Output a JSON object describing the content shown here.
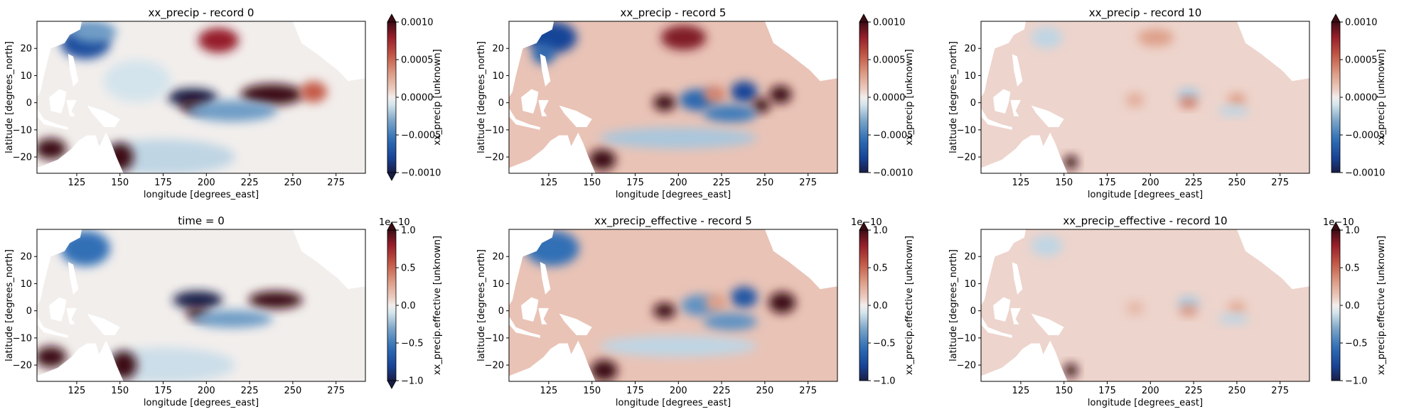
{
  "colors": {
    "background": "#ffffff",
    "land": "#ffffff",
    "ocean_neutral": "#f0e9e7",
    "colormap": "balance (diverging dark-blue - white - dark-red)"
  },
  "chart_data": [
    {
      "type": "heatmap",
      "title": "xx_precip - record 0",
      "xlabel": "longitude [degrees_east]",
      "ylabel": "latitude [degrees_north]",
      "xticks": [
        "125",
        "150",
        "175",
        "200",
        "225",
        "250",
        "275"
      ],
      "yticks": [
        "20",
        "10",
        "0",
        "−10",
        "−20"
      ],
      "xlim": [
        102,
        292
      ],
      "ylim": [
        -26,
        30
      ],
      "colorbar": {
        "label": "xx_precip [unknown]",
        "ticks": [
          "0.0010",
          "0.0005",
          "0.0000",
          "−0.0005",
          "−0.0010"
        ],
        "range": [
          -0.001,
          0.001
        ],
        "multiplier": "",
        "extend_min": true,
        "extend_max": true
      },
      "background_value": 0.0,
      "features": [
        {
          "lon": 130,
          "lat": 22,
          "sx": 11,
          "sy": 4.5,
          "v": -0.75
        },
        {
          "lon": 135,
          "lat": 26,
          "sx": 10,
          "sy": 3,
          "v": -0.35
        },
        {
          "lon": 207,
          "lat": 23,
          "sx": 9,
          "sy": 3.5,
          "v": 0.8
        },
        {
          "lon": 192,
          "lat": 2,
          "sx": 11,
          "sy": 2.5,
          "v": -1.2
        },
        {
          "lon": 193,
          "lat": -1,
          "sx": 6,
          "sy": 2,
          "v": 1.4
        },
        {
          "lon": 238,
          "lat": 3,
          "sx": 14,
          "sy": 3,
          "v": 1.1
        },
        {
          "lon": 262,
          "lat": 4,
          "sx": 6,
          "sy": 3,
          "v": 0.55
        },
        {
          "lon": 215,
          "lat": -3,
          "sx": 20,
          "sy": 3,
          "v": -0.35
        },
        {
          "lon": 175,
          "lat": -20,
          "sx": 32,
          "sy": 5,
          "v": -0.15
        },
        {
          "lon": 110,
          "lat": -17,
          "sx": 7,
          "sy": 3,
          "v": 1.6
        },
        {
          "lon": 150,
          "lat": -20,
          "sx": 6,
          "sy": 4,
          "v": 1.7
        },
        {
          "lon": 160,
          "lat": 8,
          "sx": 15,
          "sy": 6,
          "v": -0.1
        }
      ]
    },
    {
      "type": "heatmap",
      "title": "xx_precip - record 5",
      "xlabel": "longitude [degrees_east]",
      "ylabel": "latitude [degrees_north]",
      "xticks": [
        "125",
        "150",
        "175",
        "200",
        "225",
        "250",
        "275"
      ],
      "yticks": [
        "20",
        "10",
        "0",
        "−10",
        "−20"
      ],
      "xlim": [
        102,
        292
      ],
      "ylim": [
        -26,
        30
      ],
      "colorbar": {
        "label": "xx_precip [unknown]",
        "ticks": [
          "0.0010",
          "0.0005",
          "0.0000",
          "−0.0005",
          "−0.0010"
        ],
        "range": [
          -0.001,
          0.001
        ],
        "multiplier": "",
        "extend_min": false,
        "extend_max": true
      },
      "background_value": 0.15,
      "features": [
        {
          "lon": 127,
          "lat": 24,
          "sx": 11,
          "sy": 4.5,
          "v": -0.8
        },
        {
          "lon": 122,
          "lat": 18,
          "sx": 5,
          "sy": 3,
          "v": -0.6
        },
        {
          "lon": 203,
          "lat": 24,
          "sx": 10,
          "sy": 3.5,
          "v": 0.85
        },
        {
          "lon": 192,
          "lat": 0,
          "sx": 5,
          "sy": 2.3,
          "v": 1.4
        },
        {
          "lon": 211,
          "lat": 1,
          "sx": 8,
          "sy": 3,
          "v": -0.6
        },
        {
          "lon": 238,
          "lat": 4,
          "sx": 6,
          "sy": 3,
          "v": -0.8
        },
        {
          "lon": 221,
          "lat": 3,
          "sx": 5,
          "sy": 2.5,
          "v": 0.4
        },
        {
          "lon": 259,
          "lat": 3,
          "sx": 5,
          "sy": 2.5,
          "v": 1.3
        },
        {
          "lon": 248,
          "lat": -1,
          "sx": 4,
          "sy": 2,
          "v": 1.0
        },
        {
          "lon": 230,
          "lat": -4,
          "sx": 12,
          "sy": 2.5,
          "v": -0.5
        },
        {
          "lon": 156,
          "lat": -21,
          "sx": 6,
          "sy": 3,
          "v": 1.8
        },
        {
          "lon": 200,
          "lat": -13,
          "sx": 35,
          "sy": 3,
          "v": -0.2
        }
      ]
    },
    {
      "type": "heatmap",
      "title": "xx_precip - record 10",
      "xlabel": "longitude [degrees_east]",
      "ylabel": "latitude [degrees_north]",
      "xticks": [
        "125",
        "150",
        "175",
        "200",
        "225",
        "250",
        "275"
      ],
      "yticks": [
        "20",
        "10",
        "0",
        "−10",
        "−20"
      ],
      "xlim": [
        102,
        292
      ],
      "ylim": [
        -26,
        30
      ],
      "colorbar": {
        "label": "xx_precip [unknown]",
        "ticks": [
          "0.0010",
          "0.0005",
          "0.0000",
          "−0.0005",
          "−0.0010"
        ],
        "range": [
          -0.001,
          0.001
        ],
        "multiplier": "",
        "extend_min": false,
        "extend_max": true
      },
      "background_value": 0.08,
      "features": [
        {
          "lon": 203,
          "lat": 24,
          "sx": 8,
          "sy": 2.5,
          "v": 0.3
        },
        {
          "lon": 140,
          "lat": 24,
          "sx": 7,
          "sy": 3,
          "v": -0.15
        },
        {
          "lon": 222,
          "lat": 3,
          "sx": 5,
          "sy": 1.8,
          "v": -0.2
        },
        {
          "lon": 222,
          "lat": 0,
          "sx": 4,
          "sy": 1.5,
          "v": 0.45
        },
        {
          "lon": 250,
          "lat": 1,
          "sx": 4,
          "sy": 2,
          "v": 0.3
        },
        {
          "lon": 248,
          "lat": -3,
          "sx": 7,
          "sy": 1.5,
          "v": -0.15
        },
        {
          "lon": 191,
          "lat": 1,
          "sx": 4,
          "sy": 2,
          "v": 0.25
        },
        {
          "lon": 154,
          "lat": -22,
          "sx": 3,
          "sy": 2,
          "v": 1.9
        }
      ]
    },
    {
      "type": "heatmap",
      "title": "time = 0",
      "xlabel": "longitude [degrees_east]",
      "ylabel": "latitude [degrees_north]",
      "xticks": [
        "125",
        "150",
        "175",
        "200",
        "225",
        "250",
        "275"
      ],
      "yticks": [
        "20",
        "10",
        "0",
        "−10",
        "−20"
      ],
      "xlim": [
        102,
        292
      ],
      "ylim": [
        -26,
        30
      ],
      "colorbar": {
        "label": "xx_precip.effective [unknown]",
        "ticks": [
          "1.0",
          "0.5",
          "0.0",
          "−0.5",
          "−1.0"
        ],
        "range": [
          -1.0,
          1.0
        ],
        "multiplier": "1e−10",
        "extend_min": true,
        "extend_max": true
      },
      "background_value": 0.0,
      "features": [
        {
          "lon": 130,
          "lat": 23,
          "sx": 11,
          "sy": 5,
          "v": -0.55
        },
        {
          "lon": 195,
          "lat": 4,
          "sx": 11,
          "sy": 2.5,
          "v": -1.1
        },
        {
          "lon": 195,
          "lat": -1,
          "sx": 5,
          "sy": 1.8,
          "v": 1.3
        },
        {
          "lon": 240,
          "lat": 4,
          "sx": 12,
          "sy": 2.5,
          "v": 1.2
        },
        {
          "lon": 215,
          "lat": -3,
          "sx": 18,
          "sy": 2.5,
          "v": -0.35
        },
        {
          "lon": 175,
          "lat": -20,
          "sx": 32,
          "sy": 5,
          "v": -0.12
        },
        {
          "lon": 110,
          "lat": -17,
          "sx": 7,
          "sy": 3,
          "v": 1.7
        },
        {
          "lon": 152,
          "lat": -20,
          "sx": 6,
          "sy": 4,
          "v": 1.7
        }
      ]
    },
    {
      "type": "heatmap",
      "title": "xx_precip_effective - record 5",
      "xlabel": "longitude [degrees_east]",
      "ylabel": "latitude [degrees_north]",
      "xticks": [
        "125",
        "150",
        "175",
        "200",
        "225",
        "250",
        "275"
      ],
      "yticks": [
        "20",
        "10",
        "0",
        "−10",
        "−20"
      ],
      "xlim": [
        102,
        292
      ],
      "ylim": [
        -26,
        30
      ],
      "colorbar": {
        "label": "xx_precip.effective [unknown]",
        "ticks": [
          "1.0",
          "0.5",
          "0.0",
          "−0.5",
          "−1.0"
        ],
        "range": [
          -1.0,
          1.0
        ],
        "multiplier": "1e−10",
        "extend_min": false,
        "extend_max": true
      },
      "background_value": 0.15,
      "features": [
        {
          "lon": 127,
          "lat": 23,
          "sx": 12,
          "sy": 5,
          "v": -0.55
        },
        {
          "lon": 192,
          "lat": 0,
          "sx": 5,
          "sy": 2.2,
          "v": 1.35
        },
        {
          "lon": 212,
          "lat": 2,
          "sx": 8,
          "sy": 3,
          "v": -0.4
        },
        {
          "lon": 238,
          "lat": 5,
          "sx": 6,
          "sy": 3,
          "v": -0.7
        },
        {
          "lon": 222,
          "lat": 3,
          "sx": 5,
          "sy": 2.5,
          "v": 0.3
        },
        {
          "lon": 260,
          "lat": 3,
          "sx": 6,
          "sy": 3,
          "v": 1.3
        },
        {
          "lon": 230,
          "lat": -4,
          "sx": 12,
          "sy": 2.5,
          "v": -0.4
        },
        {
          "lon": 157,
          "lat": -22,
          "sx": 6,
          "sy": 3,
          "v": 1.8
        },
        {
          "lon": 200,
          "lat": -13,
          "sx": 35,
          "sy": 3,
          "v": -0.15
        }
      ]
    },
    {
      "type": "heatmap",
      "title": "xx_precip_effective - record 10",
      "xlabel": "longitude [degrees_east]",
      "ylabel": "latitude [degrees_north]",
      "xticks": [
        "125",
        "150",
        "175",
        "200",
        "225",
        "250",
        "275"
      ],
      "yticks": [
        "20",
        "10",
        "0",
        "−10",
        "−20"
      ],
      "xlim": [
        102,
        292
      ],
      "ylim": [
        -26,
        30
      ],
      "colorbar": {
        "label": "xx_precip.effective [unknown]",
        "ticks": [
          "1.0",
          "0.5",
          "0.0",
          "−0.5",
          "−1.0"
        ],
        "range": [
          -1.0,
          1.0
        ],
        "multiplier": "1e−10",
        "extend_min": false,
        "extend_max": true
      },
      "background_value": 0.08,
      "features": [
        {
          "lon": 140,
          "lat": 24,
          "sx": 7,
          "sy": 3,
          "v": -0.15
        },
        {
          "lon": 222,
          "lat": 3,
          "sx": 5,
          "sy": 1.8,
          "v": -0.2
        },
        {
          "lon": 222,
          "lat": 0,
          "sx": 4,
          "sy": 1.5,
          "v": 0.35
        },
        {
          "lon": 250,
          "lat": 1,
          "sx": 4,
          "sy": 2,
          "v": 0.25
        },
        {
          "lon": 248,
          "lat": -3,
          "sx": 7,
          "sy": 1.5,
          "v": -0.15
        },
        {
          "lon": 191,
          "lat": 1,
          "sx": 4,
          "sy": 2,
          "v": 0.2
        },
        {
          "lon": 154,
          "lat": -22,
          "sx": 3,
          "sy": 2,
          "v": 1.9
        }
      ]
    }
  ]
}
